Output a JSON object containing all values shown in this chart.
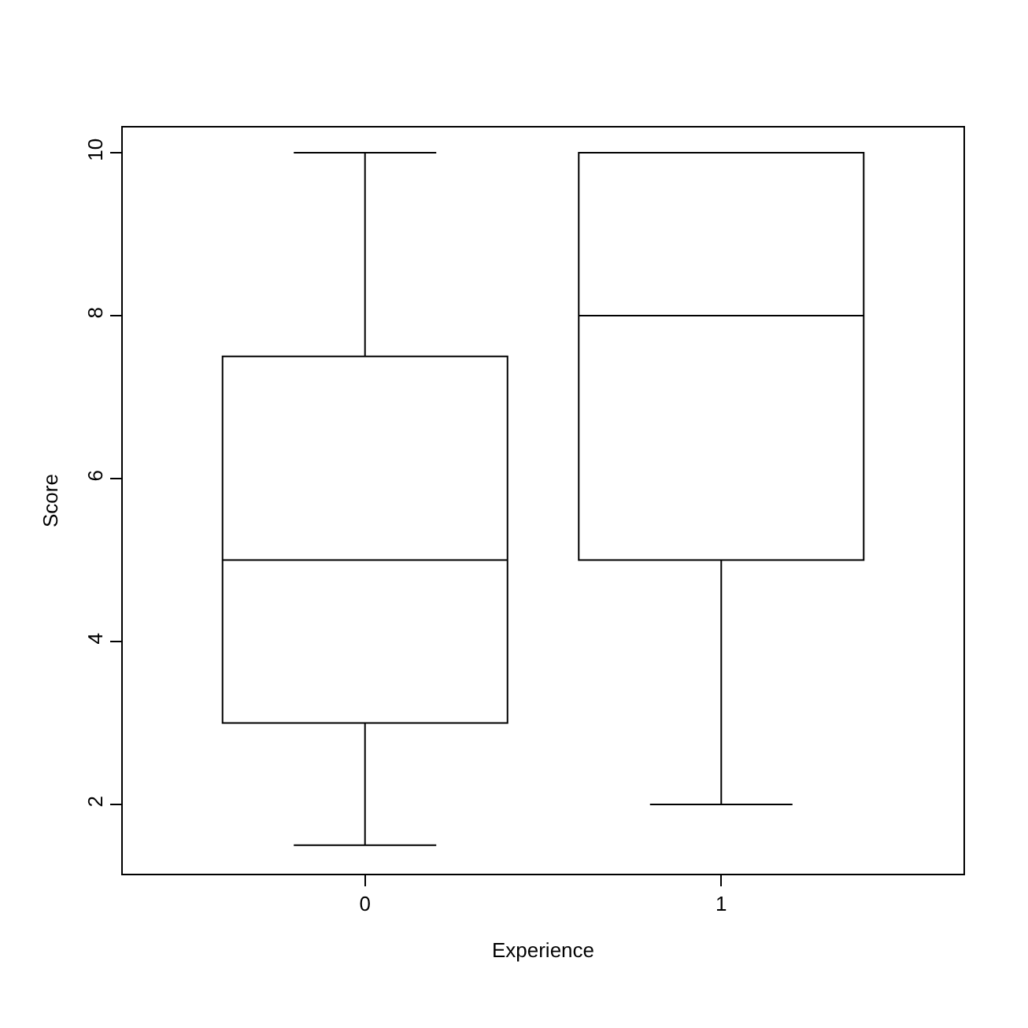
{
  "chart_data": {
    "type": "box",
    "xlabel": "Experience",
    "ylabel": "Score",
    "categories": [
      "0",
      "1"
    ],
    "boxes": [
      {
        "low": 1.5,
        "q1": 3,
        "median": 5,
        "q3": 7.5,
        "high": 10
      },
      {
        "low": 2,
        "q1": 5,
        "median": 8,
        "q3": 10,
        "high": 10
      }
    ],
    "ylim": [
      1.15,
      10.31
    ],
    "yticks": [
      2,
      4,
      6,
      8,
      10
    ]
  }
}
